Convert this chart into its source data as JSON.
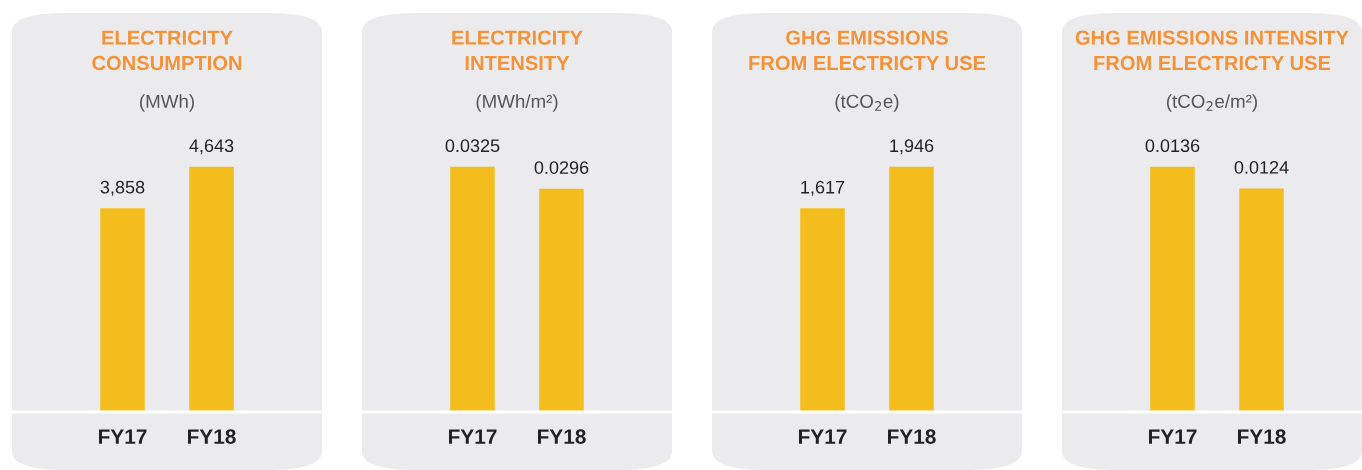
{
  "chart_data": [
    {
      "type": "bar",
      "title": "ELECTRICITY\nCONSUMPTION",
      "subtitle": "(MWh)",
      "categories": [
        "FY17",
        "FY18"
      ],
      "values": [
        3858,
        4643
      ],
      "value_labels": [
        "3,858",
        "4,643"
      ],
      "color": "#f2bd1d",
      "tick_labels": "x"
    },
    {
      "type": "bar",
      "title": "ELECTRICITY\nINTENSITY",
      "subtitle": "(MWh/m²)",
      "categories": [
        "FY17",
        "FY18"
      ],
      "values": [
        0.0325,
        0.0296
      ],
      "value_labels": [
        "0.0325",
        "0.0296"
      ],
      "color": "#f2bd1d",
      "tick_labels": "x"
    },
    {
      "type": "bar",
      "title": "GHG EMISSIONS\nFROM ELECTRICTY USE",
      "subtitle": "(tCO$_{2}$e)",
      "categories": [
        "FY17",
        "FY18"
      ],
      "values": [
        1617,
        1946
      ],
      "value_labels": [
        "1,617",
        "1,946"
      ],
      "color": "#f2bd1d",
      "tick_labels": "x"
    },
    {
      "type": "bar",
      "title": "GHG EMISSIONS INTENSITY\nFROM ELECTRICTY USE",
      "subtitle": "(tCO$_{2}$e/m²)",
      "categories": [
        "FY17",
        "FY18"
      ],
      "values": [
        0.0136,
        0.0124
      ],
      "value_labels": [
        "0.0136",
        "0.0124"
      ],
      "color": "#f2bd1d",
      "tick_labels": "x"
    }
  ]
}
